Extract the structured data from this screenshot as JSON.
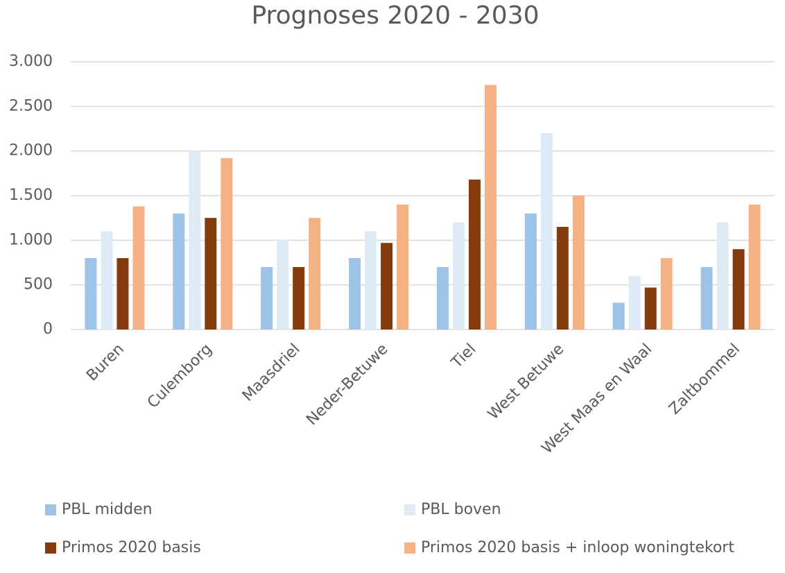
{
  "chart_data": {
    "type": "bar",
    "title": "Prognoses 2020 - 2030",
    "categories": [
      "Buren",
      "Culemborg",
      "Maasdriel",
      "Neder-Betuwe",
      "Tiel",
      "West Betuwe",
      "West Maas en Waal",
      "Zaltbommel"
    ],
    "series": [
      {
        "name": "PBL midden",
        "color": "#9dc3e6",
        "values": [
          800,
          1300,
          700,
          800,
          700,
          1300,
          300,
          700
        ]
      },
      {
        "name": "PBL boven",
        "color": "#deebf7",
        "values": [
          1100,
          2000,
          1000,
          1100,
          1200,
          2200,
          600,
          1200
        ]
      },
      {
        "name": "Primos 2020 basis",
        "color": "#843c0c",
        "values": [
          800,
          1250,
          700,
          970,
          1680,
          1150,
          470,
          900
        ]
      },
      {
        "name": "Primos 2020 basis + inloop woningtekort",
        "color": "#f4b183",
        "values": [
          1380,
          1920,
          1250,
          1400,
          2740,
          1500,
          800,
          1400
        ]
      }
    ],
    "ylim": [
      0,
      3000
    ],
    "yticks": [
      0,
      500,
      {
        "value": 1000,
        "label": "1.000"
      },
      {
        "value": 1500,
        "label": "1.500"
      },
      {
        "value": 2000,
        "label": "2.000"
      },
      {
        "value": 2500,
        "label": "2.500"
      },
      {
        "value": 3000,
        "label": "3.000"
      }
    ],
    "grid": true
  }
}
